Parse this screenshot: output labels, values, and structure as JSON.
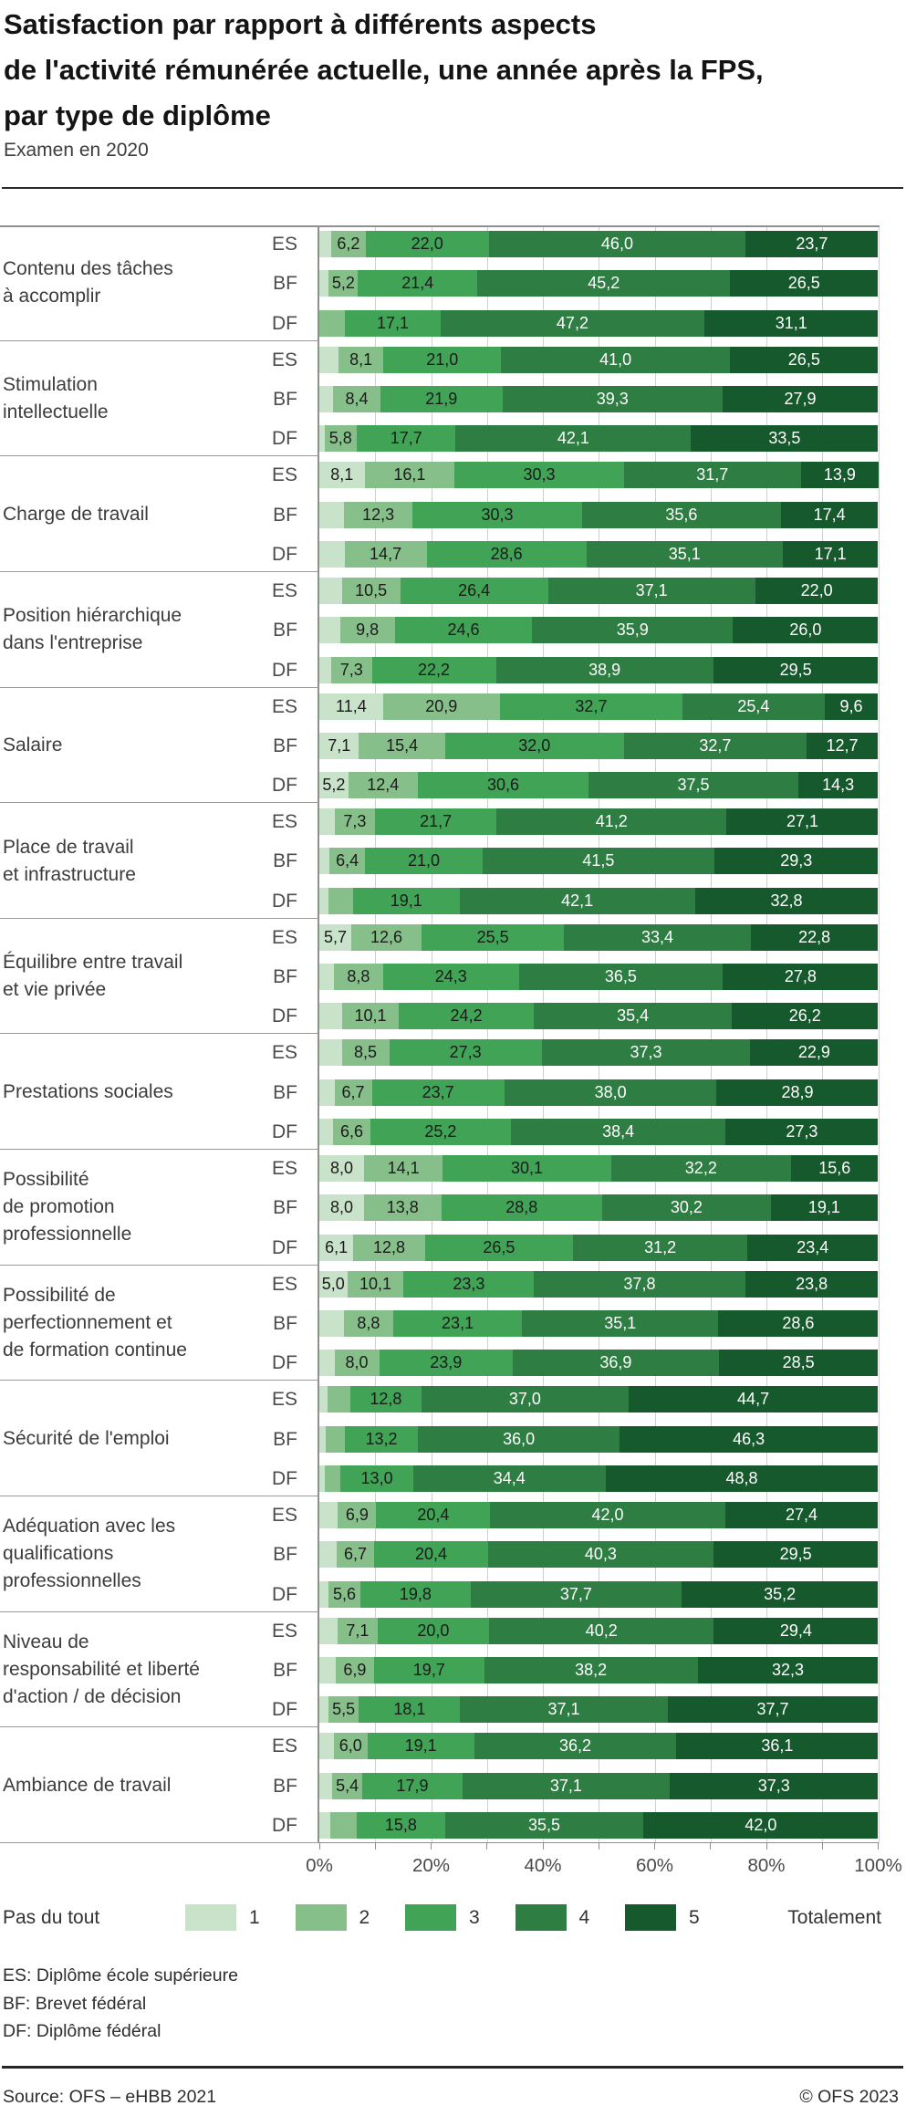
{
  "header": {
    "title_lines": [
      "Satisfaction par rapport à différents aspects",
      "de l'activité rémunérée actuelle, une année après la FPS,",
      "par type de diplôme"
    ],
    "subtitle": "Examen en 2020"
  },
  "x_axis": {
    "tick_labels": [
      "0%",
      "20%",
      "40%",
      "60%",
      "80%",
      "100%"
    ]
  },
  "legend": {
    "left_label": "Pas du tout",
    "right_label": "Totalement",
    "items": [
      {
        "value": "1",
        "color": "#c9e3ca"
      },
      {
        "value": "2",
        "color": "#87bf8a"
      },
      {
        "value": "3",
        "color": "#40a356"
      },
      {
        "value": "4",
        "color": "#2e7d42"
      },
      {
        "value": "5",
        "color": "#16592c"
      }
    ]
  },
  "footnotes": [
    "ES: Diplôme école supérieure",
    "BF: Brevet fédéral",
    "DF: Diplôme fédéral"
  ],
  "footer": {
    "source": "Source: OFS – eHBB 2021",
    "copyright": "© OFS 2023"
  },
  "chart_data": {
    "type": "bar",
    "orientation": "horizontal",
    "stacked": true,
    "unit": "percent",
    "xlim": [
      0,
      100
    ],
    "grid": "vertical every 10%",
    "legend_position": "bottom",
    "levels": [
      "1",
      "2",
      "3",
      "4",
      "5"
    ],
    "colors": [
      "#c9e3ca",
      "#87bf8a",
      "#40a356",
      "#2e7d42",
      "#16592c"
    ],
    "row_codes": [
      "ES",
      "BF",
      "DF"
    ],
    "note": "values without printed labels are visual estimates of small unlabeled segments",
    "groups": [
      {
        "label_lines": [
          "Contenu des tâches",
          "à accomplir"
        ],
        "bars": [
          {
            "code": "ES",
            "values": [
              2.1,
              6.2,
              22.0,
              46.0,
              23.7
            ],
            "labels": [
              "",
              "6,2",
              "22,0",
              "46,0",
              "23,7"
            ]
          },
          {
            "code": "BF",
            "values": [
              1.7,
              5.2,
              21.4,
              45.2,
              26.5
            ],
            "labels": [
              "",
              "5,2",
              "21,4",
              "45,2",
              "26,5"
            ]
          },
          {
            "code": "DF",
            "values": [
              0.0,
              4.6,
              17.1,
              47.2,
              31.1
            ],
            "labels": [
              "",
              "",
              "17,1",
              "47,2",
              "31,1"
            ]
          }
        ]
      },
      {
        "label_lines": [
          "Stimulation",
          "intellectuelle"
        ],
        "bars": [
          {
            "code": "ES",
            "values": [
              3.4,
              8.1,
              21.0,
              41.0,
              26.5
            ],
            "labels": [
              "",
              "8,1",
              "21,0",
              "41,0",
              "26,5"
            ]
          },
          {
            "code": "BF",
            "values": [
              2.5,
              8.4,
              21.9,
              39.3,
              27.9
            ],
            "labels": [
              "",
              "8,4",
              "21,9",
              "39,3",
              "27,9"
            ]
          },
          {
            "code": "DF",
            "values": [
              0.9,
              5.8,
              17.7,
              42.1,
              33.5
            ],
            "labels": [
              "",
              "5,8",
              "17,7",
              "42,1",
              "33,5"
            ]
          }
        ]
      },
      {
        "label_lines": [
          "Charge de travail"
        ],
        "bars": [
          {
            "code": "ES",
            "values": [
              8.1,
              16.1,
              30.3,
              31.7,
              13.9
            ],
            "labels": [
              "8,1",
              "16,1",
              "30,3",
              "31,7",
              "13,9"
            ]
          },
          {
            "code": "BF",
            "values": [
              4.4,
              12.3,
              30.3,
              35.6,
              17.4
            ],
            "labels": [
              "",
              "12,3",
              "30,3",
              "35,6",
              "17,4"
            ]
          },
          {
            "code": "DF",
            "values": [
              4.5,
              14.7,
              28.6,
              35.1,
              17.1
            ],
            "labels": [
              "",
              "14,7",
              "28,6",
              "35,1",
              "17,1"
            ]
          }
        ]
      },
      {
        "label_lines": [
          "Position hiérarchique",
          "dans l'entreprise"
        ],
        "bars": [
          {
            "code": "ES",
            "values": [
              4.0,
              10.5,
              26.4,
              37.1,
              22.0
            ],
            "labels": [
              "",
              "10,5",
              "26,4",
              "37,1",
              "22,0"
            ]
          },
          {
            "code": "BF",
            "values": [
              3.7,
              9.8,
              24.6,
              35.9,
              26.0
            ],
            "labels": [
              "",
              "9,8",
              "24,6",
              "35,9",
              "26,0"
            ]
          },
          {
            "code": "DF",
            "values": [
              2.1,
              7.3,
              22.2,
              38.9,
              29.5
            ],
            "labels": [
              "",
              "7,3",
              "22,2",
              "38,9",
              "29,5"
            ]
          }
        ]
      },
      {
        "label_lines": [
          "Salaire"
        ],
        "bars": [
          {
            "code": "ES",
            "values": [
              11.4,
              20.9,
              32.7,
              25.4,
              9.6
            ],
            "labels": [
              "11,4",
              "20,9",
              "32,7",
              "25,4",
              "9,6"
            ]
          },
          {
            "code": "BF",
            "values": [
              7.1,
              15.4,
              32.0,
              32.7,
              12.7
            ],
            "labels": [
              "7,1",
              "15,4",
              "32,0",
              "32,7",
              "12,7"
            ]
          },
          {
            "code": "DF",
            "values": [
              5.2,
              12.4,
              30.6,
              37.5,
              14.3
            ],
            "labels": [
              "5,2",
              "12,4",
              "30,6",
              "37,5",
              "14,3"
            ]
          }
        ]
      },
      {
        "label_lines": [
          "Place de travail",
          "et infrastructure"
        ],
        "bars": [
          {
            "code": "ES",
            "values": [
              2.7,
              7.3,
              21.7,
              41.2,
              27.1
            ],
            "labels": [
              "",
              "7,3",
              "21,7",
              "41,2",
              "27,1"
            ]
          },
          {
            "code": "BF",
            "values": [
              1.8,
              6.4,
              21.0,
              41.5,
              29.3
            ],
            "labels": [
              "",
              "6,4",
              "21,0",
              "41,5",
              "29,3"
            ]
          },
          {
            "code": "DF",
            "values": [
              1.6,
              4.4,
              19.1,
              42.1,
              32.8
            ],
            "labels": [
              "",
              "",
              "19,1",
              "42,1",
              "32,8"
            ]
          }
        ]
      },
      {
        "label_lines": [
          "Équilibre entre travail",
          "et vie privée"
        ],
        "bars": [
          {
            "code": "ES",
            "values": [
              5.7,
              12.6,
              25.5,
              33.4,
              22.8
            ],
            "labels": [
              "5,7",
              "12,6",
              "25,5",
              "33,4",
              "22,8"
            ]
          },
          {
            "code": "BF",
            "values": [
              2.6,
              8.8,
              24.3,
              36.5,
              27.8
            ],
            "labels": [
              "",
              "8,8",
              "24,3",
              "36,5",
              "27,8"
            ]
          },
          {
            "code": "DF",
            "values": [
              4.1,
              10.1,
              24.2,
              35.4,
              26.2
            ],
            "labels": [
              "",
              "10,1",
              "24,2",
              "35,4",
              "26,2"
            ]
          }
        ]
      },
      {
        "label_lines": [
          "Prestations sociales"
        ],
        "bars": [
          {
            "code": "ES",
            "values": [
              4.0,
              8.5,
              27.3,
              37.3,
              22.9
            ],
            "labels": [
              "",
              "8,5",
              "27,3",
              "37,3",
              "22,9"
            ]
          },
          {
            "code": "BF",
            "values": [
              2.7,
              6.7,
              23.7,
              38.0,
              28.9
            ],
            "labels": [
              "",
              "6,7",
              "23,7",
              "38,0",
              "28,9"
            ]
          },
          {
            "code": "DF",
            "values": [
              2.5,
              6.6,
              25.2,
              38.4,
              27.3
            ],
            "labels": [
              "",
              "6,6",
              "25,2",
              "38,4",
              "27,3"
            ]
          }
        ]
      },
      {
        "label_lines": [
          "Possibilité",
          "de promotion",
          "professionnelle"
        ],
        "bars": [
          {
            "code": "ES",
            "values": [
              8.0,
              14.1,
              30.1,
              32.2,
              15.6
            ],
            "labels": [
              "8,0",
              "14,1",
              "30,1",
              "32,2",
              "15,6"
            ]
          },
          {
            "code": "BF",
            "values": [
              8.0,
              13.8,
              28.8,
              30.2,
              19.1
            ],
            "labels": [
              "8,0",
              "13,8",
              "28,8",
              "30,2",
              "19,1"
            ]
          },
          {
            "code": "DF",
            "values": [
              6.1,
              12.8,
              26.5,
              31.2,
              23.4
            ],
            "labels": [
              "6,1",
              "12,8",
              "26,5",
              "31,2",
              "23,4"
            ]
          }
        ]
      },
      {
        "label_lines": [
          "Possibilité de",
          "perfectionnement et",
          "de formation continue"
        ],
        "bars": [
          {
            "code": "ES",
            "values": [
              5.0,
              10.1,
              23.3,
              37.8,
              23.8
            ],
            "labels": [
              "5,0",
              "10,1",
              "23,3",
              "37,8",
              "23,8"
            ]
          },
          {
            "code": "BF",
            "values": [
              4.4,
              8.8,
              23.1,
              35.1,
              28.6
            ],
            "labels": [
              "",
              "8,8",
              "23,1",
              "35,1",
              "28,6"
            ]
          },
          {
            "code": "DF",
            "values": [
              2.7,
              8.0,
              23.9,
              36.9,
              28.5
            ],
            "labels": [
              "",
              "8,0",
              "23,9",
              "36,9",
              "28,5"
            ]
          }
        ]
      },
      {
        "label_lines": [
          "Sécurité de l'emploi"
        ],
        "bars": [
          {
            "code": "ES",
            "values": [
              1.4,
              4.1,
              12.8,
              37.0,
              44.7
            ],
            "labels": [
              "",
              "",
              "12,8",
              "37,0",
              "44,7"
            ]
          },
          {
            "code": "BF",
            "values": [
              1.2,
              3.3,
              13.2,
              36.0,
              46.3
            ],
            "labels": [
              "",
              "",
              "13,2",
              "36,0",
              "46,3"
            ]
          },
          {
            "code": "DF",
            "values": [
              1.0,
              2.8,
              13.0,
              34.4,
              48.8
            ],
            "labels": [
              "",
              "",
              "13,0",
              "34,4",
              "48,8"
            ]
          }
        ]
      },
      {
        "label_lines": [
          "Adéquation avec les",
          "qualifications",
          "professionnelles"
        ],
        "bars": [
          {
            "code": "ES",
            "values": [
              3.3,
              6.9,
              20.4,
              42.0,
              27.4
            ],
            "labels": [
              "",
              "6,9",
              "20,4",
              "42,0",
              "27,4"
            ]
          },
          {
            "code": "BF",
            "values": [
              3.1,
              6.7,
              20.4,
              40.3,
              29.5
            ],
            "labels": [
              "",
              "6,7",
              "20,4",
              "40,3",
              "29,5"
            ]
          },
          {
            "code": "DF",
            "values": [
              1.7,
              5.6,
              19.8,
              37.7,
              35.2
            ],
            "labels": [
              "",
              "5,6",
              "19,8",
              "37,7",
              "35,2"
            ]
          }
        ]
      },
      {
        "label_lines": [
          "Niveau de",
          "responsabilité et liberté",
          "d'action / de décision"
        ],
        "bars": [
          {
            "code": "ES",
            "values": [
              3.3,
              7.1,
              20.0,
              40.2,
              29.4
            ],
            "labels": [
              "",
              "7,1",
              "20,0",
              "40,2",
              "29,4"
            ]
          },
          {
            "code": "BF",
            "values": [
              2.9,
              6.9,
              19.7,
              38.2,
              32.3
            ],
            "labels": [
              "",
              "6,9",
              "19,7",
              "38,2",
              "32,3"
            ]
          },
          {
            "code": "DF",
            "values": [
              1.6,
              5.5,
              18.1,
              37.1,
              37.7
            ],
            "labels": [
              "",
              "5,5",
              "18,1",
              "37,1",
              "37,7"
            ]
          }
        ]
      },
      {
        "label_lines": [
          "Ambiance de travail"
        ],
        "bars": [
          {
            "code": "ES",
            "values": [
              2.6,
              6.0,
              19.1,
              36.2,
              36.1
            ],
            "labels": [
              "",
              "6,0",
              "19,1",
              "36,2",
              "36,1"
            ]
          },
          {
            "code": "BF",
            "values": [
              2.3,
              5.4,
              17.9,
              37.1,
              37.3
            ],
            "labels": [
              "",
              "5,4",
              "17,9",
              "37,1",
              "37,3"
            ]
          },
          {
            "code": "DF",
            "values": [
              2.0,
              4.7,
              15.8,
              35.5,
              42.0
            ],
            "labels": [
              "",
              "",
              "15,8",
              "35,5",
              "42,0"
            ]
          }
        ]
      }
    ]
  }
}
